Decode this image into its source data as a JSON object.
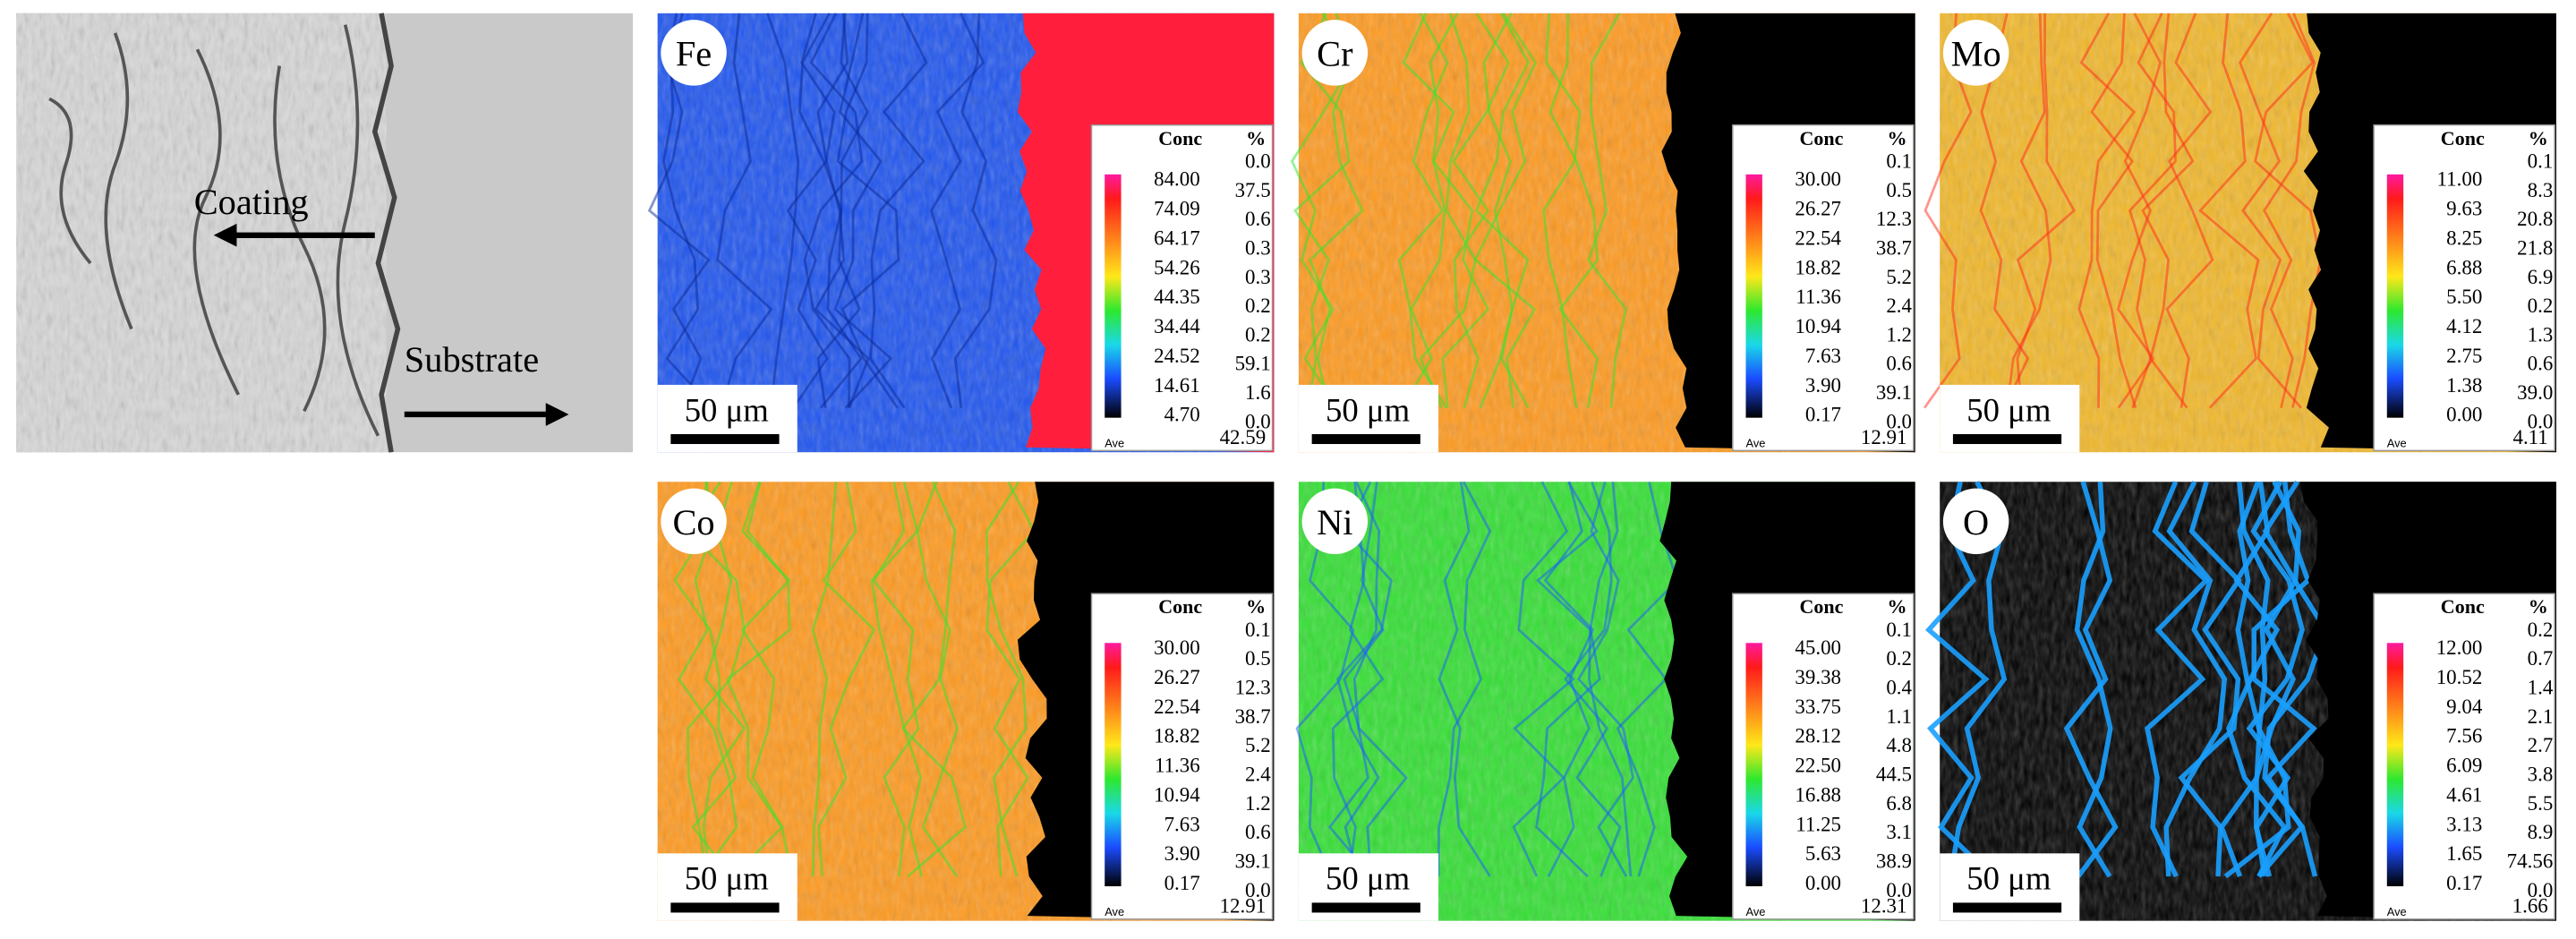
{
  "sem": {
    "coating_label": "Coating",
    "substrate_label": "Substrate"
  },
  "maps": [
    {
      "element": "Fe",
      "scale_bar": "50 μm",
      "conc_header": "Conc",
      "pct_header": "%",
      "levels": [
        "84.00",
        "74.09",
        "64.17",
        "54.26",
        "44.35",
        "34.44",
        "24.52",
        "14.61",
        "4.70"
      ],
      "percents": [
        "0.0",
        "37.5",
        "0.6",
        "0.3",
        "0.3",
        "0.2",
        "0.2",
        "59.1",
        "1.6",
        "0.0"
      ],
      "ave_label": "Ave",
      "ave_value": "42.59"
    },
    {
      "element": "Cr",
      "scale_bar": "50 μm",
      "conc_header": "Conc",
      "pct_header": "%",
      "levels": [
        "30.00",
        "26.27",
        "22.54",
        "18.82",
        "11.36",
        "10.94",
        "7.63",
        "3.90",
        "0.17"
      ],
      "percents": [
        "0.1",
        "0.5",
        "12.3",
        "38.7",
        "5.2",
        "2.4",
        "1.2",
        "0.6",
        "39.1",
        "0.0"
      ],
      "ave_label": "Ave",
      "ave_value": "12.91"
    },
    {
      "element": "Mo",
      "scale_bar": "50 μm",
      "conc_header": "Conc",
      "pct_header": "%",
      "levels": [
        "11.00",
        "9.63",
        "8.25",
        "6.88",
        "5.50",
        "4.12",
        "2.75",
        "1.38",
        "0.00"
      ],
      "percents": [
        "0.1",
        "8.3",
        "20.8",
        "21.8",
        "6.9",
        "0.2",
        "1.3",
        "0.6",
        "39.0",
        "0.0"
      ],
      "ave_label": "Ave",
      "ave_value": "4.11"
    },
    {
      "element": "Co",
      "scale_bar": "50 μm",
      "conc_header": "Conc",
      "pct_header": "%",
      "levels": [
        "30.00",
        "26.27",
        "22.54",
        "18.82",
        "11.36",
        "10.94",
        "7.63",
        "3.90",
        "0.17"
      ],
      "percents": [
        "0.1",
        "0.5",
        "12.3",
        "38.7",
        "5.2",
        "2.4",
        "1.2",
        "0.6",
        "39.1",
        "0.0"
      ],
      "ave_label": "Ave",
      "ave_value": "12.91"
    },
    {
      "element": "Ni",
      "scale_bar": "50 μm",
      "conc_header": "Conc",
      "pct_header": "%",
      "levels": [
        "45.00",
        "39.38",
        "33.75",
        "28.12",
        "22.50",
        "16.88",
        "11.25",
        "5.63",
        "0.00"
      ],
      "percents": [
        "0.1",
        "0.2",
        "0.4",
        "1.1",
        "4.8",
        "44.5",
        "6.8",
        "3.1",
        "38.9",
        "0.0"
      ],
      "ave_label": "Ave",
      "ave_value": "12.31"
    },
    {
      "element": "O",
      "scale_bar": "50 μm",
      "conc_header": "Conc",
      "pct_header": "%",
      "levels": [
        "12.00",
        "10.52",
        "9.04",
        "7.56",
        "6.09",
        "4.61",
        "3.13",
        "1.65",
        "0.17"
      ],
      "percents": [
        "0.2",
        "0.7",
        "1.4",
        "2.1",
        "2.7",
        "3.8",
        "5.5",
        "8.9",
        "74.56",
        "0.0"
      ],
      "ave_label": "Ave",
      "ave_value": "1.66"
    }
  ]
}
